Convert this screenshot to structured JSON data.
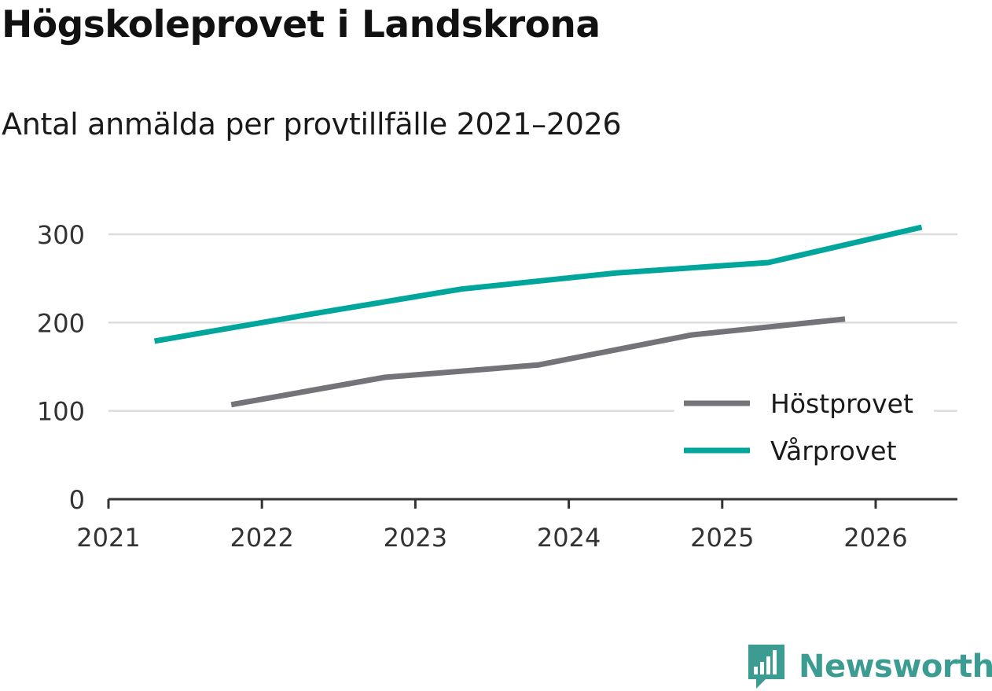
{
  "title": "Högskoleprovet i Landskrona",
  "subtitle": "Antal anmälda per provtillfälle 2021–2026",
  "brand": {
    "name": "Newsworthy",
    "icon": "bar-chart-speech-bubble-icon",
    "color": "#3c9c92"
  },
  "chart_data": {
    "type": "line",
    "x_ticks": [
      "2021",
      "2022",
      "2023",
      "2024",
      "2025",
      "2026"
    ],
    "y_ticks": [
      0,
      100,
      200,
      300
    ],
    "ylim": [
      0,
      320
    ],
    "xlim": [
      2021,
      2026.55
    ],
    "grid": true,
    "legend_position": "bottom-right",
    "series": [
      {
        "name": "Höstprovet",
        "color": "#74737a",
        "x": [
          2021.8,
          2022.8,
          2023.8,
          2024.8,
          2025.8
        ],
        "values": [
          107,
          138,
          152,
          186,
          204
        ]
      },
      {
        "name": "Vårprovet",
        "color": "#00a69c",
        "x": [
          2021.3,
          2022.3,
          2023.3,
          2024.3,
          2025.3,
          2026.3
        ],
        "values": [
          179,
          209,
          238,
          256,
          268,
          308
        ]
      }
    ]
  }
}
